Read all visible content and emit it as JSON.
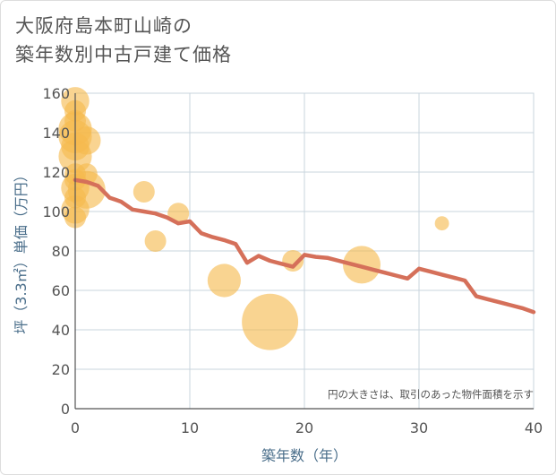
{
  "chart_data": {
    "type": "scatter",
    "title_lines": [
      "大阪府島本町山崎の",
      "築年数別中古戸建て価格"
    ],
    "xlabel": "築年数（年）",
    "ylabel": "坪（3.3㎡）単価（万円）",
    "xlim": [
      0,
      40
    ],
    "ylim": [
      0,
      160
    ],
    "x_ticks": [
      "0",
      "10",
      "20",
      "30",
      "40"
    ],
    "y_ticks": [
      "0",
      "20",
      "40",
      "60",
      "80",
      "100",
      "120",
      "140",
      "160"
    ],
    "grid": true,
    "note": "円の大きさは、取引のあった物件面積を示す",
    "colors": {
      "bubble": "#f5b94d",
      "line": "#d5705a",
      "grid": "#c9d4de",
      "axis": "#555555"
    },
    "bubbles": [
      {
        "x": 0,
        "y": 156,
        "size": 2
      },
      {
        "x": 0,
        "y": 151,
        "size": 1
      },
      {
        "x": 0,
        "y": 146,
        "size": 1
      },
      {
        "x": 0,
        "y": 142,
        "size": 3
      },
      {
        "x": 0,
        "y": 138,
        "size": 3
      },
      {
        "x": 0,
        "y": 133,
        "size": 2
      },
      {
        "x": 0,
        "y": 128,
        "size": 3
      },
      {
        "x": 0,
        "y": 119,
        "size": 1
      },
      {
        "x": 0,
        "y": 116,
        "size": 1
      },
      {
        "x": 0,
        "y": 112,
        "size": 2
      },
      {
        "x": 0,
        "y": 107,
        "size": 1
      },
      {
        "x": 0,
        "y": 101,
        "size": 2
      },
      {
        "x": 0,
        "y": 97,
        "size": 1
      },
      {
        "x": 1,
        "y": 136,
        "size": 2
      },
      {
        "x": 1,
        "y": 119,
        "size": 1
      },
      {
        "x": 1,
        "y": 111,
        "size": 4
      },
      {
        "x": 6,
        "y": 110,
        "size": 1
      },
      {
        "x": 7,
        "y": 85,
        "size": 1
      },
      {
        "x": 9,
        "y": 99,
        "size": 1
      },
      {
        "x": 13,
        "y": 65,
        "size": 3
      },
      {
        "x": 17,
        "y": 44,
        "size": 10
      },
      {
        "x": 19,
        "y": 75,
        "size": 1
      },
      {
        "x": 25,
        "y": 73,
        "size": 4
      },
      {
        "x": 32,
        "y": 94,
        "size": 0.3
      }
    ],
    "trend_line": {
      "x": [
        0,
        1,
        2,
        3,
        4,
        5,
        6,
        7,
        8,
        9,
        10,
        11,
        12,
        13,
        14,
        15,
        16,
        17,
        18,
        19,
        20,
        21,
        22,
        23,
        24,
        25,
        26,
        27,
        28,
        29,
        30,
        31,
        32,
        33,
        34,
        35,
        36,
        37,
        38,
        39,
        40
      ],
      "y": [
        116,
        115,
        113,
        107,
        105,
        101,
        100,
        99,
        97,
        94,
        95,
        89,
        87,
        85.5,
        83.5,
        74,
        77.5,
        75,
        73.5,
        72,
        78,
        77,
        76.5,
        75,
        73.5,
        72,
        70.5,
        69,
        67.5,
        66,
        71,
        69.5,
        68,
        66.5,
        65,
        57,
        55.5,
        54,
        52.5,
        51,
        49
      ]
    }
  }
}
